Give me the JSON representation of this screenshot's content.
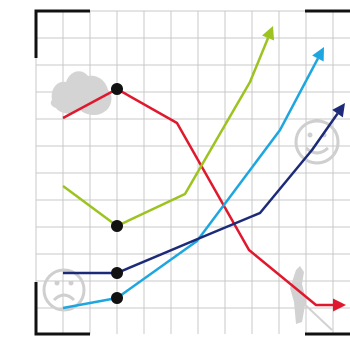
{
  "diagram": {
    "colors": {
      "grid": "#c8c8c8",
      "frame": "#111111",
      "red": "#e0182d",
      "green": "#9cc31f",
      "cyan": "#1ea6e0",
      "navy": "#1c2a78",
      "node": "#111111",
      "glyph": "#d2d2d2"
    },
    "icons": [
      "cloud-shape-icon",
      "smiley-happy-icon",
      "smiley-sad-icon",
      "standing-figure-icon"
    ],
    "lines": [
      {
        "id": "red-line",
        "color_key": "red"
      },
      {
        "id": "green-line",
        "color_key": "green"
      },
      {
        "id": "cyan-line",
        "color_key": "cyan"
      },
      {
        "id": "navy-line",
        "color_key": "navy"
      }
    ]
  }
}
